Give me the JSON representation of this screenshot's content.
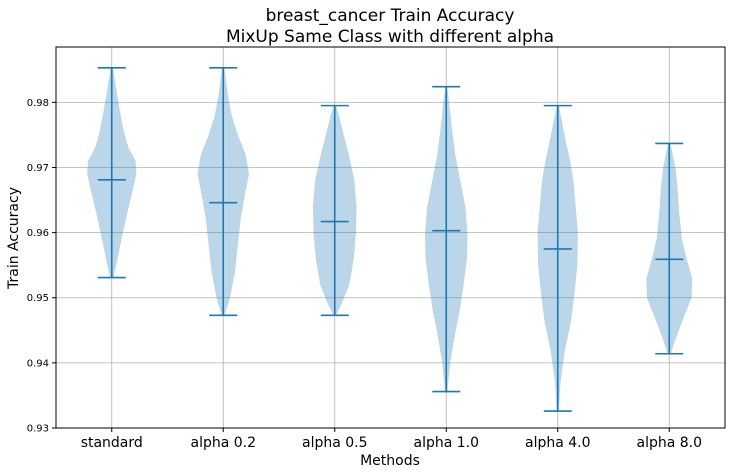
{
  "chart_data": {
    "type": "violin",
    "title": "breast_cancer Train Accuracy",
    "subtitle": "MixUp Same Class with different alpha",
    "xlabel": "Methods",
    "ylabel": "Train Accuracy",
    "ylim": [
      0.93,
      0.9885
    ],
    "yticks": [
      0.93,
      0.94,
      0.95,
      0.96,
      0.97,
      0.98
    ],
    "ytick_labels": [
      "0.93",
      "0.94",
      "0.95",
      "0.96",
      "0.97",
      "0.98"
    ],
    "grid": true,
    "color": "#1f77b4",
    "categories": [
      "standard",
      "alpha 0.2",
      "alpha 0.5",
      "alpha 1.0",
      "alpha 4.0",
      "alpha 8.0"
    ],
    "series": [
      {
        "min": 0.9531,
        "mean": 0.9681,
        "max": 0.9853,
        "profile": [
          [
            0.9531,
            0.05
          ],
          [
            0.955,
            0.16
          ],
          [
            0.958,
            0.3
          ],
          [
            0.962,
            0.5
          ],
          [
            0.966,
            0.72
          ],
          [
            0.969,
            0.88
          ],
          [
            0.971,
            0.85
          ],
          [
            0.973,
            0.6
          ],
          [
            0.975,
            0.46
          ],
          [
            0.978,
            0.32
          ],
          [
            0.981,
            0.2
          ],
          [
            0.9853,
            0.04
          ]
        ]
      },
      {
        "min": 0.9473,
        "mean": 0.9646,
        "max": 0.9853,
        "profile": [
          [
            0.9473,
            0.05
          ],
          [
            0.95,
            0.24
          ],
          [
            0.954,
            0.42
          ],
          [
            0.958,
            0.52
          ],
          [
            0.962,
            0.62
          ],
          [
            0.966,
            0.78
          ],
          [
            0.969,
            0.92
          ],
          [
            0.972,
            0.8
          ],
          [
            0.975,
            0.52
          ],
          [
            0.978,
            0.3
          ],
          [
            0.981,
            0.17
          ],
          [
            0.9853,
            0.04
          ]
        ]
      },
      {
        "min": 0.9473,
        "mean": 0.9617,
        "max": 0.9795,
        "profile": [
          [
            0.9473,
            0.05
          ],
          [
            0.949,
            0.24
          ],
          [
            0.952,
            0.52
          ],
          [
            0.956,
            0.68
          ],
          [
            0.96,
            0.76
          ],
          [
            0.964,
            0.78
          ],
          [
            0.968,
            0.7
          ],
          [
            0.972,
            0.5
          ],
          [
            0.975,
            0.32
          ],
          [
            0.978,
            0.15
          ],
          [
            0.9795,
            0.04
          ]
        ]
      },
      {
        "min": 0.9356,
        "mean": 0.9603,
        "max": 0.9824,
        "profile": [
          [
            0.9356,
            0.04
          ],
          [
            0.94,
            0.14
          ],
          [
            0.944,
            0.3
          ],
          [
            0.948,
            0.48
          ],
          [
            0.952,
            0.62
          ],
          [
            0.956,
            0.74
          ],
          [
            0.96,
            0.76
          ],
          [
            0.964,
            0.68
          ],
          [
            0.968,
            0.5
          ],
          [
            0.972,
            0.32
          ],
          [
            0.976,
            0.2
          ],
          [
            0.98,
            0.1
          ],
          [
            0.9824,
            0.03
          ]
        ]
      },
      {
        "min": 0.9326,
        "mean": 0.9575,
        "max": 0.9795,
        "profile": [
          [
            0.9326,
            0.04
          ],
          [
            0.937,
            0.1
          ],
          [
            0.942,
            0.26
          ],
          [
            0.946,
            0.46
          ],
          [
            0.95,
            0.58
          ],
          [
            0.955,
            0.7
          ],
          [
            0.96,
            0.72
          ],
          [
            0.964,
            0.64
          ],
          [
            0.968,
            0.56
          ],
          [
            0.971,
            0.44
          ],
          [
            0.975,
            0.24
          ],
          [
            0.9795,
            0.04
          ]
        ]
      },
      {
        "min": 0.9414,
        "mean": 0.9559,
        "max": 0.9737,
        "profile": [
          [
            0.9414,
            0.05
          ],
          [
            0.944,
            0.26
          ],
          [
            0.947,
            0.52
          ],
          [
            0.95,
            0.8
          ],
          [
            0.953,
            0.82
          ],
          [
            0.956,
            0.62
          ],
          [
            0.959,
            0.45
          ],
          [
            0.963,
            0.36
          ],
          [
            0.967,
            0.3
          ],
          [
            0.97,
            0.22
          ],
          [
            0.9737,
            0.04
          ]
        ]
      }
    ]
  }
}
